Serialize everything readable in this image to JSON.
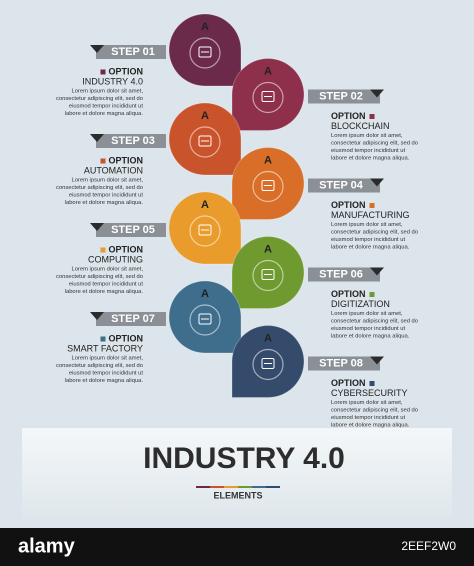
{
  "header": {
    "title": "INDUSTRY 4.0",
    "subtitle": "ELEMENTS"
  },
  "steps": [
    {
      "label": "STEP 01",
      "letter": "A",
      "option": "OPTION",
      "title": "INDUSTRY 4.0",
      "color": "#6b2a4a",
      "text": [
        "Lorem ipsum dolor sit amet,",
        "consectetur adipiscing elit, sed do",
        "eiusmod tempor incididunt ut",
        "labore et dolore magna aliqua."
      ]
    },
    {
      "label": "STEP 02",
      "letter": "A",
      "option": "OPTION",
      "title": "BLOCKCHAIN",
      "color": "#8e2f4c",
      "text": [
        "Lorem ipsum dolor sit amet,",
        "consectetur adipiscing elit, sed do",
        "eiusmod tempor incididunt ut",
        "labore et dolore magna aliqua."
      ]
    },
    {
      "label": "STEP 03",
      "letter": "A",
      "option": "OPTION",
      "title": "AUTOMATION",
      "color": "#c9532b",
      "text": [
        "Lorem ipsum dolor sit amet,",
        "consectetur adipiscing elit, sed do",
        "eiusmod tempor incididunt ut",
        "labore et dolore magna aliqua."
      ]
    },
    {
      "label": "STEP 04",
      "letter": "A",
      "option": "OPTION",
      "title": "MANUFACTURING",
      "color": "#d96e29",
      "text": [
        "Lorem ipsum dolor sit amet,",
        "consectetur adipiscing elit, sed do",
        "eiusmod tempor incididunt ut",
        "labore et dolore magna aliqua."
      ]
    },
    {
      "label": "STEP 05",
      "letter": "A",
      "option": "OPTION",
      "title": "COMPUTING",
      "color": "#e99b2b",
      "text": [
        "Lorem ipsum dolor sit amet,",
        "consectetur adipiscing elit, sed do",
        "eiusmod tempor incididunt ut",
        "labore et dolore magna aliqua."
      ]
    },
    {
      "label": "STEP 06",
      "letter": "A",
      "option": "OPTION",
      "title": "DIGITIZATION",
      "color": "#6f9a30",
      "text": [
        "Lorem ipsum dolor sit amet,",
        "consectetur adipiscing elit, sed do",
        "eiusmod tempor incididunt ut",
        "labore et dolore magna aliqua."
      ]
    },
    {
      "label": "STEP 07",
      "letter": "A",
      "option": "OPTION",
      "title": "SMART FACTORY",
      "color": "#3f6d8c",
      "text": [
        "Lorem ipsum dolor sit amet,",
        "consectetur adipiscing elit, sed do",
        "eiusmod tempor incididunt ut",
        "labore et dolore magna aliqua."
      ]
    },
    {
      "label": "STEP 08",
      "letter": "A",
      "option": "OPTION",
      "title": "CYBERSECURITY",
      "color": "#354b6b",
      "text": [
        "Lorem ipsum dolor sit amet,",
        "consectetur adipiscing elit, sed do",
        "eiusmod tempor incididunt ut",
        "labore et dolore magna aliqua."
      ]
    }
  ],
  "footer": {
    "brand": "alamy",
    "image_id": "2EEF2W0"
  }
}
